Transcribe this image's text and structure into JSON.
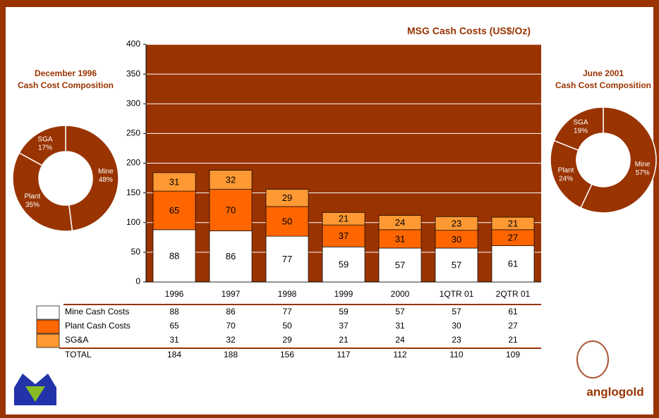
{
  "chart_data": [
    {
      "type": "bar",
      "stacked": true,
      "title": "MSG Cash Costs (US$/Oz)",
      "categories": [
        "1996",
        "1997",
        "1998",
        "1999",
        "2000",
        "1QTR 01",
        "2QTR 01"
      ],
      "series": [
        {
          "name": "Mine Cash Costs",
          "color": "#ffffff",
          "values": [
            88,
            86,
            77,
            59,
            57,
            57,
            61
          ]
        },
        {
          "name": "Plant Cash Costs",
          "color": "#ff6600",
          "values": [
            65,
            70,
            50,
            37,
            31,
            30,
            27
          ]
        },
        {
          "name": "SG&A",
          "color": "#ff9933",
          "values": [
            31,
            32,
            29,
            21,
            24,
            23,
            21
          ]
        }
      ],
      "total_label": "TOTAL",
      "totals": [
        184,
        188,
        156,
        117,
        112,
        110,
        109
      ],
      "ylim": [
        0,
        400
      ],
      "yticks": [
        0,
        50,
        100,
        150,
        200,
        250,
        300,
        350,
        400
      ],
      "grid": true,
      "plot_color": "#993300"
    },
    {
      "type": "pie",
      "donut": true,
      "title": "December 1996",
      "subtitle": "Cash Cost Composition",
      "categories": [
        "Mine",
        "Plant",
        "SGA"
      ],
      "values": [
        48,
        35,
        17
      ],
      "value_labels": [
        "48%",
        "35%",
        "17%"
      ],
      "color": "#993300"
    },
    {
      "type": "pie",
      "donut": true,
      "title": "June 2001",
      "subtitle": "Cash Cost Composition",
      "categories": [
        "Mine",
        "Plant",
        "SGA"
      ],
      "values": [
        57,
        24,
        19
      ],
      "value_labels": [
        "57%",
        "24%",
        "19%"
      ],
      "color": "#993300"
    }
  ],
  "logo": {
    "text": "anglogold"
  }
}
